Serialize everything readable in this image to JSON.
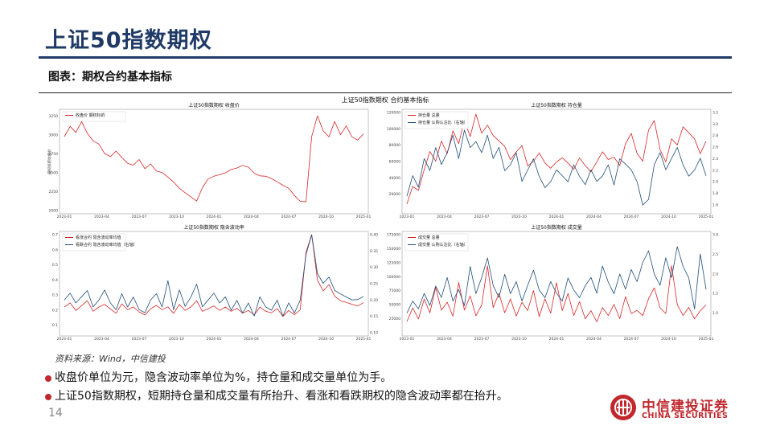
{
  "page": {
    "title": "上证50指数期权",
    "subtitle": "图表：期权合约基本指标",
    "figure_title": "上证50指数期权 合约基本指标",
    "source": "资料来源：Wind，中信建投",
    "bullets": [
      "收盘价单位为元，隐含波动率单位为%，持仓量和成交量单位为手。",
      "上证50指数期权，短期持仓量和成交量有所抬升、看涨和看跌期权的隐含波动率都在抬升。"
    ],
    "page_number": "14",
    "logo": {
      "cn": "中信建投证券",
      "en": "CHINA SECURITIES",
      "color": "#c0282d"
    },
    "colors": {
      "title": "#1f3a66",
      "red_series": "#d62728",
      "blue_series": "#1f4e79"
    }
  },
  "chart_data": [
    {
      "type": "line",
      "title": "上证50指数期权 收盘价",
      "ylabel": "期权标的收盘价",
      "x_ticks": [
        "2023-01",
        "2023-04",
        "2023-07",
        "2023-10",
        "2024-01",
        "2024-04",
        "2024-07",
        "2024-10",
        "2025-01"
      ],
      "ylim_left": [
        2000,
        3300
      ],
      "y_ticks_left": [
        "2000",
        "2250",
        "2500",
        "2750",
        "3000",
        "3250"
      ],
      "legend": [
        "收盘价 期权标的"
      ],
      "series": [
        {
          "name": "收盘价 期权标的",
          "axis": "left",
          "color": "#d62728",
          "values": [
            2980,
            3120,
            3040,
            3180,
            3020,
            2920,
            2880,
            2760,
            2720,
            2790,
            2700,
            2620,
            2600,
            2680,
            2560,
            2620,
            2520,
            2500,
            2440,
            2380,
            2300,
            2240,
            2180,
            2120,
            2300,
            2420,
            2460,
            2480,
            2500,
            2540,
            2560,
            2600,
            2580,
            2500,
            2460,
            2450,
            2420,
            2380,
            2340,
            2300,
            2200,
            2120,
            2110,
            2980,
            3260,
            3060,
            2980,
            3180,
            3000,
            3120,
            2980,
            2940,
            3020
          ]
        }
      ]
    },
    {
      "type": "line",
      "title": "上证50指数期权 持仓量",
      "x_ticks": [
        "2023-01",
        "2023-04",
        "2023-07",
        "2023-10",
        "2024-01",
        "2024-04",
        "2024-07",
        "2024-10",
        "2025-01"
      ],
      "ylim_left": [
        0,
        120000
      ],
      "y_ticks_left": [
        "20000",
        "40000",
        "60000",
        "80000",
        "100000",
        "120000"
      ],
      "ylim_right": [
        1.5,
        3.2
      ],
      "y_ticks_right": [
        "1.6",
        "1.8",
        "2.0",
        "2.2",
        "2.4",
        "2.6",
        "2.8",
        "3.0",
        "3.2"
      ],
      "legend": [
        "持仓量 总量",
        "持仓量 认购认沽比（右轴）"
      ],
      "series": [
        {
          "name": "持仓量 总量",
          "axis": "left",
          "color": "#d62728",
          "values": [
            8000,
            30000,
            25000,
            50000,
            72000,
            60000,
            85000,
            70000,
            98000,
            82000,
            110000,
            90000,
            118000,
            95000,
            105000,
            92000,
            85000,
            78000,
            62000,
            72000,
            80000,
            55000,
            60000,
            70000,
            58000,
            52000,
            60000,
            65000,
            58000,
            50000,
            64000,
            55000,
            48000,
            60000,
            72000,
            62000,
            65000,
            55000,
            82000,
            95000,
            70000,
            60000,
            98000,
            110000,
            75000,
            60000,
            88000,
            80000,
            102000,
            95000,
            88000,
            70000,
            85000
          ]
        },
        {
          "name": "持仓量 认购认沽比（右轴）",
          "axis": "right",
          "color": "#1f4e79",
          "values": [
            1.75,
            2.1,
            1.9,
            2.4,
            2.2,
            2.6,
            2.3,
            2.5,
            2.8,
            2.4,
            2.9,
            2.6,
            2.7,
            2.5,
            2.8,
            2.4,
            2.6,
            2.2,
            2.3,
            2.5,
            2.0,
            2.2,
            2.4,
            2.1,
            1.9,
            2.0,
            2.2,
            2.1,
            2.0,
            2.3,
            2.1,
            1.95,
            2.2,
            2.0,
            2.1,
            2.3,
            1.95,
            2.4,
            2.3,
            2.2,
            2.0,
            1.6,
            1.7,
            2.3,
            2.5,
            2.2,
            2.4,
            2.6,
            2.3,
            2.1,
            2.2,
            2.4,
            2.1
          ]
        }
      ]
    },
    {
      "type": "line",
      "title": "上证50指数期权 隐含波动率",
      "x_ticks": [
        "2023-01",
        "2023-04",
        "2023-07",
        "2023-10",
        "2024-01",
        "2024-04",
        "2024-07",
        "2024-10",
        "2025-01"
      ],
      "ylim_left": [
        0.05,
        0.7
      ],
      "y_ticks_left": [
        "0.1",
        "0.2",
        "0.3",
        "0.4",
        "0.5",
        "0.6",
        "0.7"
      ],
      "ylim_right": [
        0.1,
        0.4
      ],
      "y_ticks_right": [
        "0.10",
        "0.15",
        "0.20",
        "0.25",
        "0.30",
        "0.35",
        "0.40"
      ],
      "legend": [
        "看涨合约 隐含波动率均值",
        "看跌合约 隐含波动率均值（右轴）"
      ],
      "series": [
        {
          "name": "看涨合约 隐含波动率均值",
          "axis": "left",
          "color": "#d62728",
          "values": [
            0.22,
            0.25,
            0.2,
            0.23,
            0.26,
            0.19,
            0.22,
            0.24,
            0.21,
            0.18,
            0.24,
            0.2,
            0.22,
            0.19,
            0.17,
            0.21,
            0.23,
            0.2,
            0.22,
            0.18,
            0.24,
            0.2,
            0.22,
            0.26,
            0.19,
            0.21,
            0.23,
            0.2,
            0.22,
            0.19,
            0.21,
            0.18,
            0.2,
            0.17,
            0.22,
            0.19,
            0.18,
            0.21,
            0.16,
            0.2,
            0.17,
            0.2,
            0.58,
            0.7,
            0.4,
            0.33,
            0.37,
            0.29,
            0.26,
            0.25,
            0.24,
            0.23,
            0.25
          ]
        },
        {
          "name": "看跌合约 隐含波动率均值（右轴）",
          "axis": "right",
          "color": "#1f4e79",
          "values": [
            0.2,
            0.22,
            0.19,
            0.21,
            0.23,
            0.18,
            0.2,
            0.23,
            0.19,
            0.17,
            0.22,
            0.18,
            0.21,
            0.17,
            0.16,
            0.2,
            0.22,
            0.18,
            0.26,
            0.17,
            0.23,
            0.18,
            0.21,
            0.25,
            0.18,
            0.2,
            0.22,
            0.19,
            0.21,
            0.17,
            0.2,
            0.16,
            0.19,
            0.15,
            0.21,
            0.18,
            0.17,
            0.2,
            0.15,
            0.19,
            0.16,
            0.2,
            0.34,
            0.4,
            0.28,
            0.25,
            0.27,
            0.23,
            0.22,
            0.21,
            0.2,
            0.2,
            0.21
          ]
        }
      ]
    },
    {
      "type": "line",
      "title": "上证50指数期权 成交量",
      "x_ticks": [
        "2023-01",
        "2023-04",
        "2023-07",
        "2023-10",
        "2024-01",
        "2024-04",
        "2024-07",
        "2024-10",
        "2025-01"
      ],
      "ylim_left": [
        0,
        175000
      ],
      "y_ticks_left": [
        "25000",
        "50000",
        "75000",
        "100000",
        "125000",
        "150000",
        "175000"
      ],
      "ylim_right": [
        0.5,
        3.0
      ],
      "y_ticks_right": [
        "1.0",
        "1.5",
        "2.0",
        "2.5",
        "3.0"
      ],
      "legend": [
        "成交量 总量",
        "成交量 认购认沽比（右轴）"
      ],
      "series": [
        {
          "name": "成交量 总量",
          "axis": "left",
          "color": "#d62728",
          "values": [
            20000,
            45000,
            25000,
            60000,
            35000,
            80000,
            40000,
            55000,
            30000,
            90000,
            40000,
            65000,
            30000,
            50000,
            120000,
            45000,
            70000,
            35000,
            60000,
            30000,
            55000,
            40000,
            75000,
            28000,
            60000,
            35000,
            90000,
            40000,
            70000,
            30000,
            55000,
            25000,
            40000,
            20000,
            45000,
            30000,
            50000,
            25000,
            65000,
            35000,
            40000,
            30000,
            60000,
            80000,
            45000,
            35000,
            120000,
            50000,
            30000,
            45000,
            25000,
            40000,
            50000
          ]
        },
        {
          "name": "成交量 认购认沽比（右轴）",
          "axis": "right",
          "color": "#1f4e79",
          "values": [
            1.0,
            1.3,
            1.1,
            1.5,
            1.2,
            1.7,
            1.4,
            1.9,
            1.3,
            1.6,
            1.2,
            2.2,
            1.5,
            1.9,
            2.4,
            1.7,
            1.4,
            2.0,
            1.5,
            1.8,
            1.3,
            1.7,
            2.1,
            1.6,
            1.4,
            1.8,
            1.5,
            1.3,
            1.9,
            1.6,
            1.4,
            1.7,
            1.9,
            1.5,
            2.2,
            1.8,
            1.5,
            2.0,
            1.6,
            2.1,
            1.8,
            2.3,
            2.6,
            2.0,
            1.7,
            2.4,
            1.9,
            2.7,
            2.2,
            1.9,
            1.1,
            2.5,
            1.6
          ]
        }
      ]
    }
  ]
}
